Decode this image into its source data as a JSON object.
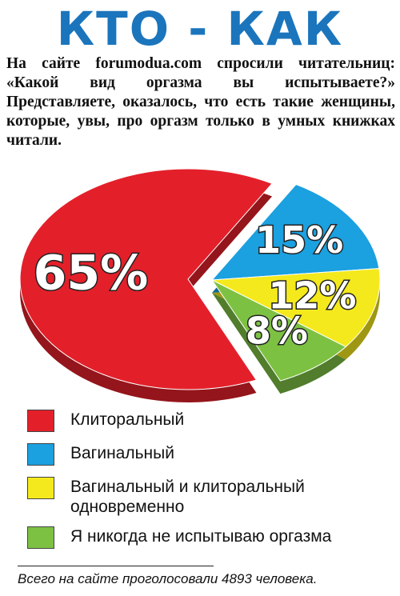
{
  "chart_data": {
    "type": "pie",
    "title": "КТО - КАК",
    "subtitle": "На сайте forumodua.com спросили читательниц: «Какой вид оргазма вы испытываете?» Представляете, оказалось, что есть такие женщины, которые, увы, про оргазм только в умных книжках читали.",
    "categories": [
      "Клиторальный",
      "Вагинальный",
      "Вагинальный и клиторальный одновременно",
      "Я никогда не испытываю оргазма"
    ],
    "values": [
      65,
      15,
      12,
      8
    ],
    "value_labels": [
      "65%",
      "15%",
      "12%",
      "8%"
    ],
    "colors": [
      "#e3202a",
      "#1ba0e0",
      "#f4e91c",
      "#7dc143"
    ],
    "footnote": "Всего на сайте проголосовали 4893 человека."
  }
}
